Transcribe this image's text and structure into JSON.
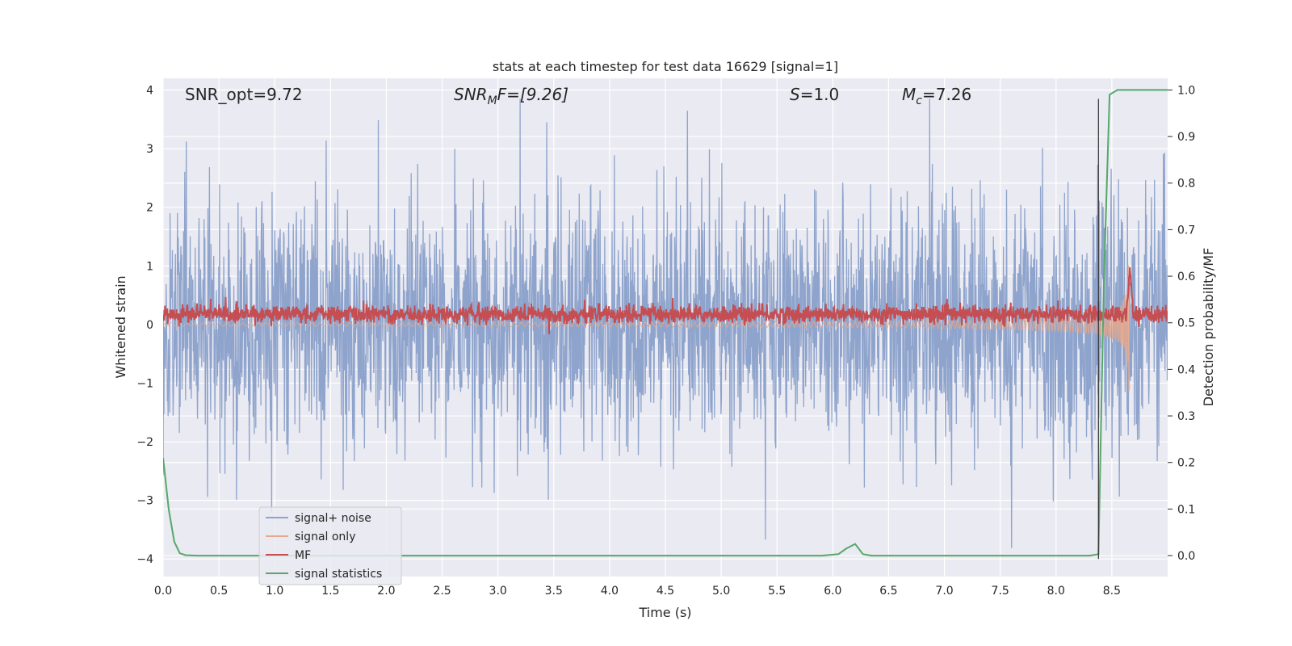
{
  "chart_data": {
    "type": "line",
    "title": "stats at each timestep for test data 16629 [signal=1]",
    "xlabel": "Time (s)",
    "ylabel": "Whitened strain",
    "y2label": "Detection probability/MF",
    "xlim": [
      0.0,
      9.0
    ],
    "ylim": [
      -4.3,
      4.2
    ],
    "y2lim": [
      -0.045,
      1.025
    ],
    "xticks": [
      "0.0",
      "0.5",
      "1.0",
      "1.5",
      "2.0",
      "2.5",
      "3.0",
      "3.5",
      "4.0",
      "4.5",
      "5.0",
      "5.5",
      "6.0",
      "6.5",
      "7.0",
      "7.5",
      "8.0",
      "8.5"
    ],
    "yticks": [
      "4",
      "3",
      "2",
      "1",
      "0",
      "−1",
      "−2",
      "−3",
      "−4"
    ],
    "y2ticks": [
      "1.0",
      "0.9",
      "0.8",
      "0.7",
      "0.6",
      "0.5",
      "0.4",
      "0.3",
      "0.2",
      "0.1",
      "0.0"
    ],
    "annotations": {
      "snr_opt": "SNR_opt=9.72",
      "snr_mf_base": "SNR",
      "snr_mf_sub": "M",
      "snr_mf_rest": "F=[9.26]",
      "s_base": "S",
      "s_rest": "=1.0",
      "mc_base": "M",
      "mc_sub": "c",
      "mc_rest": "=7.26"
    },
    "merger_time": 8.38,
    "series": [
      {
        "name": "signal+ noise",
        "color": "#8fa4cc",
        "axis": "left",
        "description": "whitened noise with chirp signal, amplitude roughly ±2.5 with spikes to ±4"
      },
      {
        "name": "signal only",
        "color": "#e8a88a",
        "axis": "left",
        "description": "chirp growing in amplitude up to ~1.3 at 8.66 s"
      },
      {
        "name": "MF",
        "color": "#c44e52",
        "axis": "left",
        "description": "matched filter output around 0.1-0.3, peaking near 1.0 at 8.66 s"
      },
      {
        "name": "signal statistics",
        "color": "#55a868",
        "axis": "right",
        "x": [
          0.0,
          0.05,
          0.1,
          0.15,
          0.2,
          0.3,
          0.5,
          1.0,
          2.0,
          3.0,
          4.0,
          5.0,
          5.9,
          6.05,
          6.12,
          6.2,
          6.27,
          6.35,
          7.0,
          8.0,
          8.3,
          8.38,
          8.43,
          8.48,
          8.55,
          9.0
        ],
        "values": [
          0.21,
          0.1,
          0.03,
          0.005,
          0.001,
          0.0,
          0.0,
          0.0,
          0.0,
          0.0,
          0.0,
          0.0,
          0.0,
          0.003,
          0.015,
          0.025,
          0.003,
          0.0,
          0.0,
          0.0,
          0.0,
          0.003,
          0.6,
          0.99,
          1.0,
          1.0
        ]
      }
    ],
    "legend": {
      "placement": "lower-left",
      "entries": [
        "signal+ noise",
        "signal only",
        "MF",
        "signal statistics"
      ]
    }
  }
}
